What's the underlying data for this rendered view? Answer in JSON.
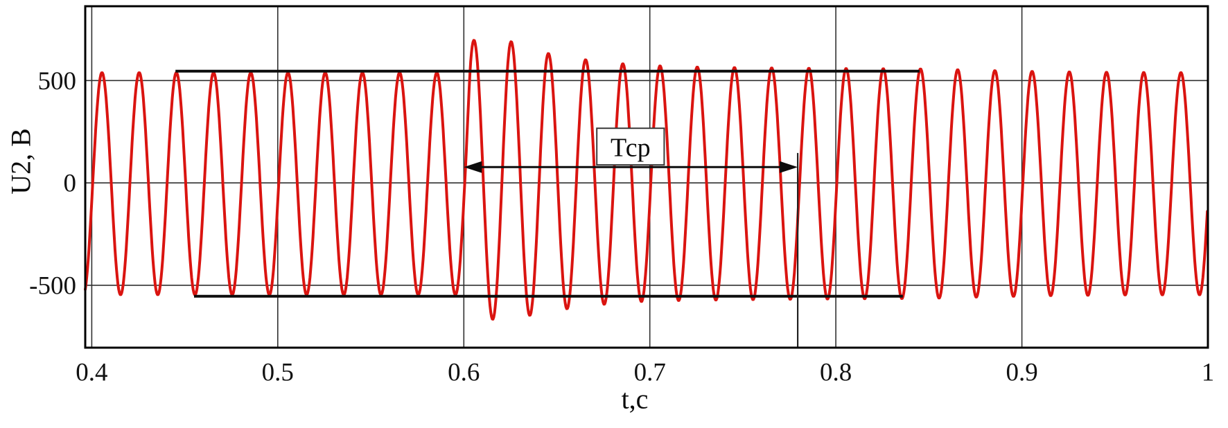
{
  "chart_data": {
    "type": "line",
    "title": "",
    "xlabel": "t,c",
    "ylabel": "U2, B",
    "xlim": [
      0.3965,
      1.0
    ],
    "ylim": [
      -805,
      863
    ],
    "grid": true,
    "background": "#ffffff",
    "border_color": "#000000",
    "gridline_color": "#303030",
    "tick_label_color": "#111111",
    "tick_font_size": 37,
    "x_ticks": {
      "values": [
        0.4,
        0.5,
        0.6,
        0.7,
        0.8,
        0.9,
        1.0
      ],
      "labels": [
        "0.4",
        "0.5",
        "0.6",
        "0.7",
        "0.8",
        "0.9",
        "1"
      ]
    },
    "y_ticks": {
      "values": [
        500,
        0,
        -500
      ],
      "labels": [
        "500",
        "0",
        "-500"
      ]
    },
    "series": [
      {
        "name": "U2",
        "color": "#da1410",
        "stroke_width": 4,
        "model": "amplitude_modulated_sine",
        "frequency_hz": 50,
        "phase_zero_t": 0.4005,
        "sample_dt": 0.0004,
        "amplitude_envelope": [
          [
            0.3965,
            543
          ],
          [
            0.6,
            543
          ],
          [
            0.6035,
            692
          ],
          [
            0.6125,
            671
          ],
          [
            0.6245,
            687
          ],
          [
            0.6335,
            657
          ],
          [
            0.6455,
            629
          ],
          [
            0.6545,
            619
          ],
          [
            0.6655,
            601
          ],
          [
            0.6745,
            594
          ],
          [
            0.6865,
            583
          ],
          [
            0.695,
            578
          ],
          [
            0.715,
            572
          ],
          [
            0.735,
            569
          ],
          [
            0.755,
            567
          ],
          [
            0.78,
            565
          ],
          [
            0.81,
            563
          ],
          [
            0.85,
            561
          ],
          [
            0.87,
            556
          ],
          [
            0.89,
            552
          ],
          [
            0.92,
            547
          ],
          [
            0.96,
            544
          ],
          [
            1.0,
            543
          ]
        ],
        "offset_envelope": [
          [
            0.3965,
            -4
          ],
          [
            0.6,
            -4
          ],
          [
            0.604,
            10
          ],
          [
            0.64,
            4
          ],
          [
            0.68,
            -1
          ],
          [
            0.72,
            -4
          ],
          [
            1.0,
            -4
          ]
        ]
      }
    ],
    "annotations": {
      "upper_envelope_line": {
        "t_start": 0.445,
        "t_end": 0.845,
        "value": 546,
        "color": "#0d0d0d",
        "width": 4
      },
      "lower_envelope_line": {
        "t_start": 0.455,
        "t_end": 0.836,
        "value": -554,
        "color": "#0d0d0d",
        "width": 4
      },
      "period_arrow": {
        "label": "Тср",
        "t_start": 0.6,
        "t_end": 0.7795,
        "value": 77,
        "color": "#0d0d0d",
        "width": 3,
        "double_headed": true
      },
      "marker_vline": {
        "t": 0.7795,
        "value_top": 146,
        "value_bottom": -805,
        "color": "#222222",
        "width": 2.2
      },
      "label_box": {
        "text": "Тср",
        "t_left": 0.6715,
        "t_right": 0.7077,
        "value_top": 267,
        "value_bottom": 88,
        "fill": "#ffffff",
        "border_color": "#3a3a3a",
        "font_size": 38
      }
    }
  }
}
